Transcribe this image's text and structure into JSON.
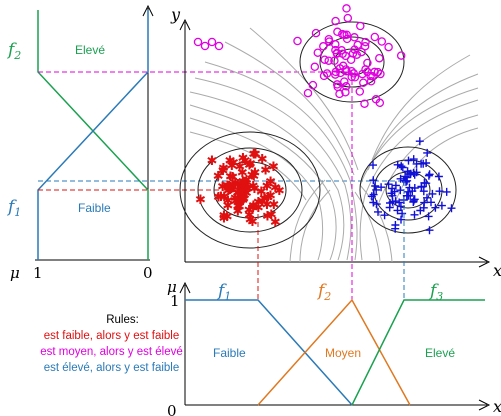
{
  "left_panel": {
    "f2": "f",
    "f2_sub": "2",
    "f1": "f",
    "f1_sub": "1",
    "high": "Elevé",
    "low": "Faible",
    "mu": "μ",
    "tick_1": "1",
    "tick_0": "0"
  },
  "axes": {
    "x": "x",
    "y": "y"
  },
  "bottom_panel": {
    "mu": "μ",
    "tick_1": "1",
    "tick_0": "0",
    "f1": "f",
    "f1_sub": "1",
    "f2": "f",
    "f2_sub": "2",
    "f3": "f",
    "f3_sub": "3",
    "low": "Faible",
    "mid": "Moyen",
    "high": "Elevé"
  },
  "rules": {
    "title": "Rules:",
    "r1": "est faible, alors y est faible",
    "r2": "est moyen, alors y est élevé",
    "r3": "est élevé, alors y est faible"
  },
  "colors": {
    "f1": "#e01010",
    "f2": "#e000e0",
    "f3": "#1010d8",
    "green": "#1aa150",
    "blue": "#2a7ab8",
    "orange": "#e07820",
    "gray": "#888888"
  }
}
